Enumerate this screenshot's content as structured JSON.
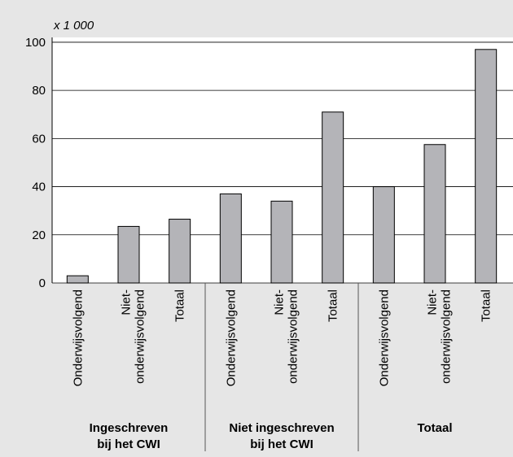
{
  "chart_data": {
    "type": "bar",
    "unit_label": "x 1 000",
    "categories": [
      "Onderwijsvolgend",
      "Niet-\nonderwijsvolgend",
      "Totaal",
      "Onderwijsvolgend",
      "Niet-\nonderwijsvolgend",
      "Totaal",
      "Onderwijsvolgend",
      "Niet-\nonderwijsvolgend",
      "Totaal"
    ],
    "values": [
      3,
      23.5,
      26.5,
      37,
      34,
      71,
      40,
      57.5,
      97
    ],
    "groups": [
      "Ingeschreven\nbij het CWI",
      "Niet ingeschreven\nbij het CWI",
      "Totaal"
    ],
    "color": "#b4b4b8",
    "ylim": [
      0,
      102
    ],
    "yticks": [
      0,
      20,
      40,
      60,
      80,
      100
    ],
    "grid": true
  }
}
